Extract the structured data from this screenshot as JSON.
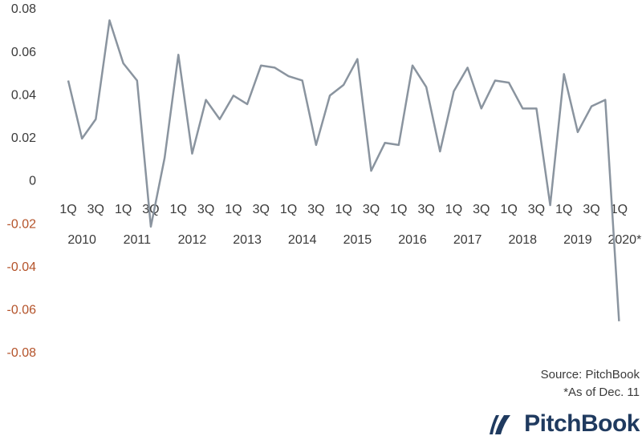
{
  "chart_data": {
    "type": "line",
    "categories": [
      "1Q",
      null,
      "3Q",
      null,
      "1Q",
      null,
      "3Q",
      null,
      "1Q",
      null,
      "3Q",
      null,
      "1Q",
      null,
      "3Q",
      null,
      "1Q",
      null,
      "3Q",
      null,
      "1Q",
      null,
      "3Q",
      null,
      "1Q",
      null,
      "3Q",
      null,
      "1Q",
      null,
      "3Q",
      null,
      "1Q",
      null,
      "3Q",
      null,
      "1Q",
      null,
      "3Q",
      null,
      "1Q"
    ],
    "year_labels": [
      "2010",
      "2011",
      "2012",
      "2013",
      "2014",
      "2015",
      "2016",
      "2017",
      "2018",
      "2019",
      "2020*"
    ],
    "values": [
      0.047,
      0.02,
      0.029,
      0.075,
      0.055,
      0.047,
      -0.021,
      0.011,
      0.059,
      0.013,
      0.038,
      0.029,
      0.04,
      0.036,
      0.054,
      0.053,
      0.049,
      0.047,
      0.017,
      0.04,
      0.045,
      0.057,
      0.005,
      0.018,
      0.017,
      0.054,
      0.044,
      0.014,
      0.042,
      0.053,
      0.034,
      0.047,
      0.046,
      0.034,
      0.034,
      -0.011,
      0.05,
      0.023,
      0.035,
      0.038,
      -0.065
    ],
    "color": "#8a949f",
    "ylim": [
      -0.08,
      0.08
    ],
    "yticks": [
      -0.08,
      -0.06,
      -0.04,
      -0.02,
      0,
      0.02,
      0.04,
      0.06,
      0.08
    ],
    "negative_tick_color": "#b4532a",
    "grid": false,
    "source": "Source: PitchBook",
    "note": "*As of Dec. 11",
    "logo": "PitchBook"
  }
}
